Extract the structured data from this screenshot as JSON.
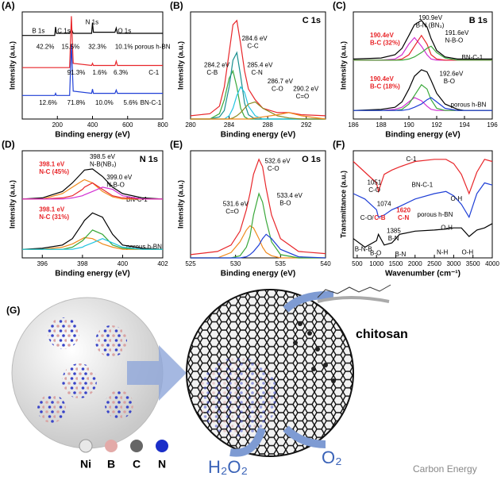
{
  "chart_data": [
    {
      "type": "line",
      "label": "(A)",
      "title": "",
      "xlabel": "Binding energy (eV)",
      "ylabel": "Intensity (a.u.)",
      "xlim": [
        0,
        800
      ],
      "xticks": [
        200,
        400,
        600,
        800
      ],
      "ylim": [
        0,
        100
      ],
      "x": [
        0,
        100,
        185,
        190,
        195,
        270,
        280,
        290,
        395,
        400,
        405,
        528,
        535,
        542,
        650,
        800
      ],
      "series": [
        {
          "name": "porous h-BN",
          "color": "#000000",
          "values": [
            78,
            78,
            78,
            86,
            80,
            80,
            84,
            80,
            80,
            90,
            81,
            81,
            85,
            80,
            80,
            80
          ]
        },
        {
          "name": "C-1",
          "color": "#e8262a",
          "values": [
            48,
            48,
            48,
            48,
            48,
            48,
            96,
            52,
            50,
            52,
            50,
            50,
            54,
            50,
            50,
            50
          ]
        },
        {
          "name": "BN-C-1",
          "color": "#1f3fd6",
          "values": [
            22,
            22,
            22,
            24,
            22,
            22,
            70,
            26,
            24,
            28,
            24,
            24,
            27,
            24,
            24,
            24
          ]
        }
      ],
      "annotations": [
        {
          "text": "B 1s"
        },
        {
          "text": "C 1s"
        },
        {
          "text": "N 1s"
        },
        {
          "text": "O 1s"
        },
        {
          "text": "42.2%"
        },
        {
          "text": "15.5%"
        },
        {
          "text": "32.3%"
        },
        {
          "text": "10.1%"
        },
        {
          "text": "91.3%"
        },
        {
          "text": "1.6%"
        },
        {
          "text": "6.3%"
        },
        {
          "text": "12.6%"
        },
        {
          "text": "71.8%"
        },
        {
          "text": "10.0%"
        },
        {
          "text": "5.6%"
        }
      ]
    },
    {
      "type": "line",
      "label": "(B)",
      "title": "C 1s",
      "xlabel": "Binding energy (eV)",
      "ylabel": "Intensity (a.u.)",
      "xlim": [
        280,
        294
      ],
      "xticks": [
        280,
        284,
        288,
        292
      ],
      "ylim": [
        0,
        100
      ],
      "x": [
        280,
        282,
        283,
        283.5,
        284,
        284.4,
        284.8,
        285.2,
        285.6,
        286,
        286.7,
        287.5,
        289,
        290.2,
        291.5,
        294
      ],
      "series": [
        {
          "color": "#e8262a",
          "values": [
            3,
            5,
            12,
            30,
            62,
            88,
            92,
            70,
            45,
            28,
            18,
            10,
            6,
            6,
            4,
            3
          ]
        },
        {
          "color": "#3aa83a",
          "values": [
            0,
            0,
            5,
            18,
            38,
            45,
            30,
            10,
            2,
            0,
            0,
            0,
            0,
            0,
            0,
            0
          ]
        },
        {
          "color": "#1a8f8f",
          "values": [
            0,
            0,
            2,
            8,
            30,
            55,
            62,
            40,
            15,
            4,
            0,
            0,
            0,
            0,
            0,
            0
          ]
        },
        {
          "color": "#22c4e0",
          "values": [
            0,
            0,
            0,
            0,
            3,
            10,
            22,
            30,
            25,
            12,
            3,
            0,
            0,
            0,
            0,
            0
          ]
        },
        {
          "color": "#8a8a20",
          "values": [
            0,
            0,
            0,
            0,
            0,
            1,
            3,
            6,
            10,
            14,
            16,
            10,
            3,
            1,
            0,
            0
          ]
        },
        {
          "color": "#f08a1c",
          "values": [
            0,
            0,
            0,
            0,
            0,
            0,
            0,
            0,
            0,
            0,
            1,
            2,
            4,
            6,
            3,
            0
          ]
        }
      ],
      "annotations": [
        {
          "text": "284.6 eV"
        },
        {
          "text": "C-C"
        },
        {
          "text": "285.4 eV"
        },
        {
          "text": "C-N"
        },
        {
          "text": "284.2 eV"
        },
        {
          "text": "C-B"
        },
        {
          "text": "286.7 eV"
        },
        {
          "text": "C-O"
        },
        {
          "text": "290.2 eV"
        },
        {
          "text": "C=O"
        }
      ]
    },
    {
      "type": "line",
      "label": "(C)",
      "title": "B 1s",
      "xlabel": "Binding energy (eV)",
      "ylabel": "Intensity (a.u.)",
      "xlim": [
        186,
        196
      ],
      "xticks": [
        186,
        188,
        190,
        192,
        194,
        196
      ],
      "ylim": [
        0,
        100
      ],
      "x": [
        186,
        188,
        189,
        189.5,
        190,
        190.4,
        190.9,
        191.3,
        191.6,
        192,
        192.6,
        193.5,
        194,
        196
      ],
      "series": [
        {
          "name": "BN-C-1",
          "color": "#000000",
          "values": [
            56,
            57,
            60,
            66,
            78,
            88,
            92,
            86,
            75,
            64,
            58,
            56,
            56,
            56
          ]
        },
        {
          "color": "#d22fd2",
          "values": [
            55,
            55,
            56,
            60,
            70,
            76,
            68,
            60,
            56,
            55,
            55,
            55,
            55,
            55
          ]
        },
        {
          "color": "#e8262a",
          "values": [
            55,
            55,
            55,
            56,
            60,
            68,
            78,
            70,
            60,
            56,
            55,
            55,
            55,
            55
          ]
        },
        {
          "color": "#3aa83a",
          "values": [
            55,
            55,
            55,
            55,
            56,
            58,
            62,
            66,
            68,
            62,
            57,
            55,
            55,
            55
          ]
        },
        {
          "name": "porous h-BN",
          "color": "#000000",
          "values": [
            8,
            9,
            11,
            16,
            28,
            40,
            46,
            44,
            36,
            24,
            14,
            9,
            8,
            8
          ]
        },
        {
          "color": "#d22fd2",
          "values": [
            8,
            8,
            9,
            11,
            16,
            20,
            17,
            12,
            9,
            8,
            8,
            8,
            8,
            8
          ]
        },
        {
          "color": "#3aa83a",
          "values": [
            8,
            8,
            8,
            9,
            14,
            22,
            32,
            28,
            18,
            10,
            8,
            8,
            8,
            8
          ]
        },
        {
          "color": "#1f3fd6",
          "values": [
            8,
            8,
            8,
            8,
            9,
            11,
            14,
            18,
            20,
            16,
            10,
            8,
            8,
            8
          ]
        }
      ],
      "annotations": [
        {
          "text": "190.9eV"
        },
        {
          "text": "B-N (BN₃)"
        },
        {
          "text": "191.6eV"
        },
        {
          "text": "N-B-O"
        },
        {
          "text": "190.4eV",
          "color": "#e8262a"
        },
        {
          "text": "B-C (32%)",
          "color": "#e8262a"
        },
        {
          "text": "192.6eV"
        },
        {
          "text": "B-O"
        },
        {
          "text": "190.4eV",
          "color": "#e8262a"
        },
        {
          "text": "B-C (18%)",
          "color": "#e8262a"
        }
      ]
    },
    {
      "type": "line",
      "label": "(D)",
      "title": "N 1s",
      "xlabel": "Binding energy (eV)",
      "ylabel": "Intensity (a.u.)",
      "xlim": [
        395,
        402
      ],
      "xticks": [
        396,
        398,
        400,
        402
      ],
      "ylim": [
        0,
        100
      ],
      "x": [
        395,
        396,
        397,
        397.5,
        398,
        398.1,
        398.5,
        399,
        399.5,
        400,
        401,
        402
      ],
      "series": [
        {
          "name": "BN-C-1",
          "color": "#000000",
          "values": [
            55,
            56,
            62,
            70,
            80,
            82,
            83,
            76,
            66,
            60,
            56,
            55
          ]
        },
        {
          "color": "#f08a1c",
          "values": [
            55,
            55,
            60,
            66,
            72,
            73,
            70,
            62,
            57,
            55,
            55,
            55
          ]
        },
        {
          "color": "#e8262a",
          "values": [
            55,
            55,
            56,
            58,
            64,
            66,
            70,
            64,
            58,
            56,
            55,
            55
          ]
        },
        {
          "color": "#d22fd2",
          "values": [
            55,
            55,
            55,
            56,
            58,
            59,
            62,
            66,
            64,
            58,
            55,
            55
          ]
        },
        {
          "name": "porous h-BN",
          "color": "#000000",
          "values": [
            8,
            9,
            12,
            18,
            32,
            35,
            42,
            38,
            22,
            12,
            9,
            8
          ]
        },
        {
          "color": "#f08a1c",
          "values": [
            8,
            8,
            10,
            13,
            18,
            19,
            18,
            13,
            10,
            8,
            8,
            8
          ]
        },
        {
          "color": "#3aa83a",
          "values": [
            8,
            8,
            8,
            10,
            16,
            18,
            26,
            22,
            12,
            9,
            8,
            8
          ]
        },
        {
          "color": "#22c4e0",
          "values": [
            8,
            8,
            8,
            8,
            10,
            11,
            14,
            18,
            14,
            10,
            8,
            8
          ]
        }
      ],
      "annotations": [
        {
          "text": "398.5 eV"
        },
        {
          "text": "N-B(NB₃)"
        },
        {
          "text": "399.0 eV"
        },
        {
          "text": "N-B-O"
        },
        {
          "text": "398.1 eV",
          "color": "#e8262a"
        },
        {
          "text": "N-C (45%)",
          "color": "#e8262a"
        },
        {
          "text": "398.1 eV",
          "color": "#e8262a"
        },
        {
          "text": "N-C (31%)",
          "color": "#e8262a"
        }
      ]
    },
    {
      "type": "line",
      "label": "(E)",
      "title": "O 1s",
      "xlabel": "Binding energy (eV)",
      "ylabel": "Intensity (a.u.)",
      "xlim": [
        525,
        540
      ],
      "xticks": [
        525,
        530,
        535,
        540
      ],
      "ylim": [
        0,
        100
      ],
      "x": [
        525,
        528,
        529.5,
        530.5,
        531.2,
        531.6,
        532,
        532.6,
        533,
        533.4,
        534,
        535,
        537,
        540
      ],
      "series": [
        {
          "color": "#e8262a",
          "values": [
            3,
            6,
            12,
            25,
            45,
            60,
            78,
            92,
            85,
            65,
            40,
            18,
            6,
            4
          ]
        },
        {
          "color": "#f08a1c",
          "values": [
            0,
            0,
            5,
            15,
            26,
            30,
            28,
            18,
            10,
            5,
            2,
            0,
            0,
            0
          ]
        },
        {
          "color": "#3aa83a",
          "values": [
            0,
            0,
            0,
            2,
            10,
            20,
            40,
            60,
            52,
            35,
            15,
            3,
            0,
            0
          ]
        },
        {
          "color": "#1f3fd6",
          "values": [
            0,
            0,
            0,
            0,
            1,
            3,
            6,
            12,
            18,
            22,
            18,
            8,
            1,
            0
          ]
        }
      ],
      "annotations": [
        {
          "text": "532.6 eV"
        },
        {
          "text": "C-O"
        },
        {
          "text": "531.6 eV"
        },
        {
          "text": "C=O"
        },
        {
          "text": "533.4 eV"
        },
        {
          "text": "B-O"
        }
      ]
    },
    {
      "type": "line",
      "label": "(F)",
      "title": "",
      "xlabel": "Wavenumber (cm⁻¹)",
      "ylabel": "Transmittance (a.u.)",
      "xlim": [
        400,
        4000
      ],
      "xticks": [
        500,
        1000,
        1500,
        2000,
        2500,
        3000,
        3500,
        4000
      ],
      "ylim": [
        0,
        100
      ],
      "x": [
        400,
        700,
        1000,
        1051,
        1200,
        1400,
        1600,
        2000,
        2500,
        2800,
        3000,
        3200,
        3400,
        3600,
        3800,
        4000
      ],
      "series": [
        {
          "name": "C-1",
          "color": "#e8262a",
          "values": [
            90,
            80,
            70,
            62,
            78,
            82,
            85,
            90,
            92,
            92,
            88,
            78,
            60,
            80,
            92,
            90
          ]
        },
        {
          "name": "BN-C-1",
          "color": "#1f3fd6",
          "values": [
            60,
            55,
            45,
            38,
            40,
            45,
            48,
            55,
            60,
            62,
            58,
            50,
            38,
            60,
            70,
            68
          ]
        },
        {
          "name": "porous h-BN",
          "color": "#000000",
          "values": [
            18,
            10,
            16,
            22,
            12,
            14,
            22,
            25,
            26,
            27,
            28,
            28,
            20,
            26,
            28,
            32
          ]
        }
      ],
      "annotations": [
        {
          "text": "1051"
        },
        {
          "text": "C-O"
        },
        {
          "text": "1074"
        },
        {
          "text": "C-O/"
        },
        {
          "text": "C-B",
          "color": "#e8262a"
        },
        {
          "text": "1620",
          "color": "#e8262a"
        },
        {
          "text": "C-N",
          "color": "#e8262a"
        },
        {
          "text": "O-H"
        },
        {
          "text": "O-H"
        },
        {
          "text": "1385"
        },
        {
          "text": "B-N"
        },
        {
          "text": "B-N-B"
        },
        {
          "text": "B-O"
        },
        {
          "text": "B-N"
        },
        {
          "text": "N-H"
        },
        {
          "text": "O-H"
        }
      ]
    }
  ],
  "diagram": {
    "label": "(G)",
    "molecule": "chitosan",
    "legend": [
      "Ni",
      "B",
      "C",
      "N"
    ],
    "product": "H₂O₂",
    "reactant": "O₂"
  },
  "watermark": "Carbon Energy"
}
